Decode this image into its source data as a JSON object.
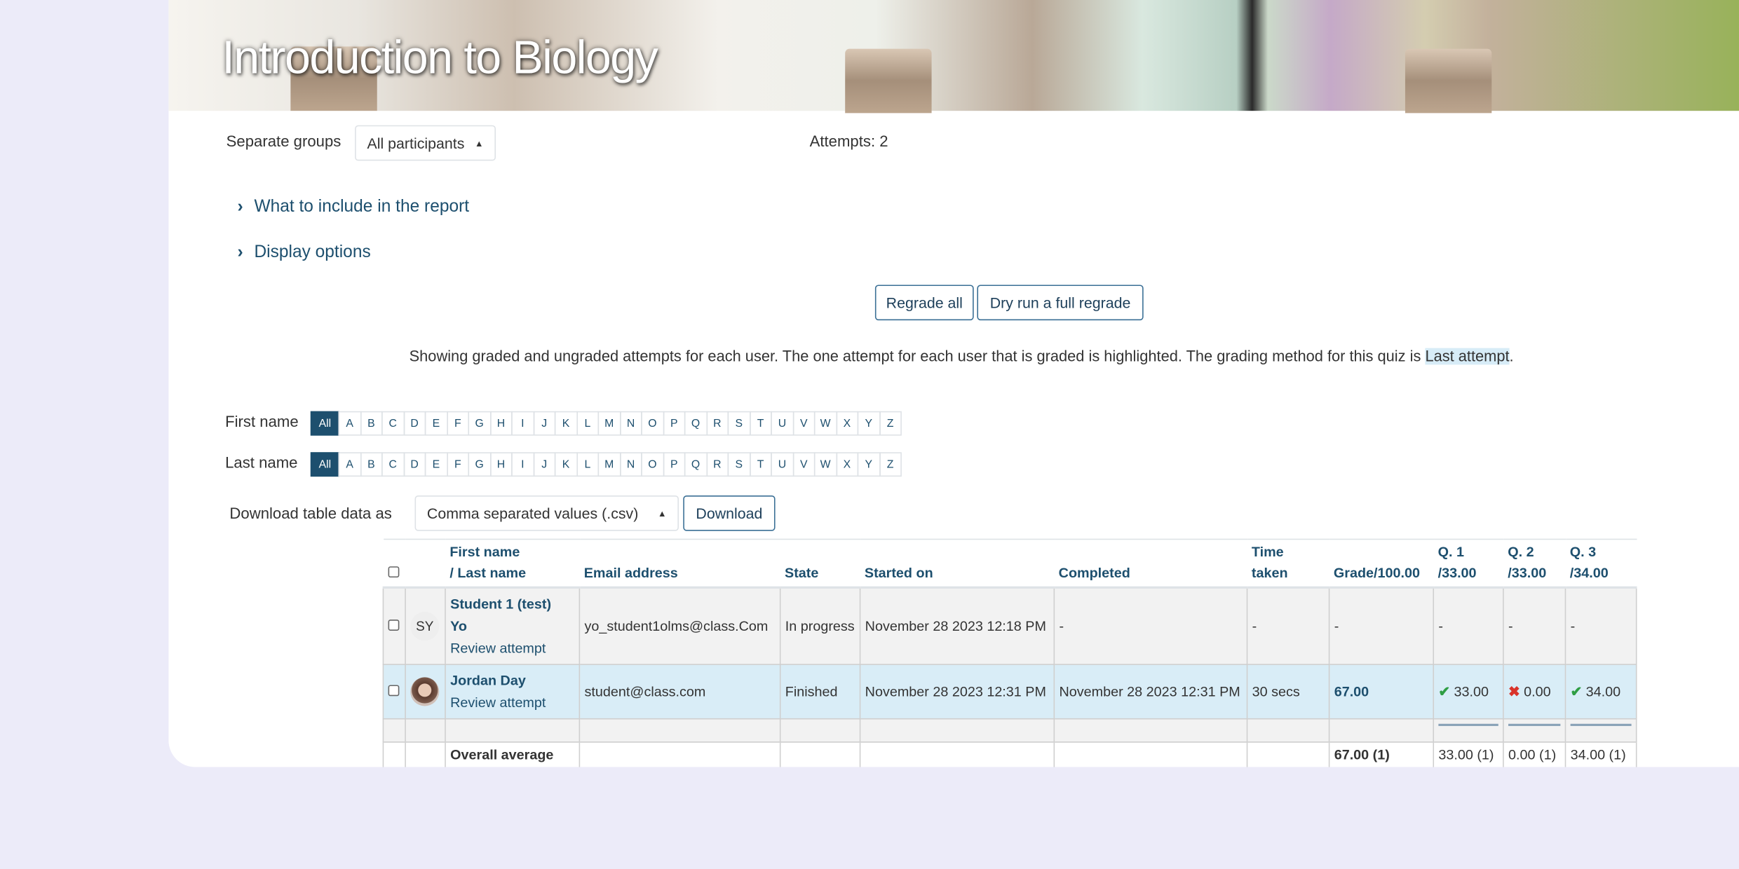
{
  "header": {
    "course_title": "Introduction to Biology"
  },
  "groups": {
    "label": "Separate groups",
    "selected": "All participants"
  },
  "attempts_text": "Attempts: 2",
  "sections": [
    {
      "label": "What to include in the report",
      "icon": "chevron-right-icon"
    },
    {
      "label": "Display options",
      "icon": "chevron-right-icon"
    }
  ],
  "buttons": {
    "regrade_all": "Regrade all",
    "dry_run": "Dry run a full regrade",
    "download": "Download"
  },
  "info": {
    "text": "Showing graded and ungraded attempts for each user. The one attempt for each user that is graded is highlighted. The grading method for this quiz is ",
    "method": "Last attempt",
    "end": "."
  },
  "initials": {
    "first_label": "First name",
    "last_label": "Last name",
    "all": "All",
    "letters": [
      "A",
      "B",
      "C",
      "D",
      "E",
      "F",
      "G",
      "H",
      "I",
      "J",
      "K",
      "L",
      "M",
      "N",
      "O",
      "P",
      "Q",
      "R",
      "S",
      "T",
      "U",
      "V",
      "W",
      "X",
      "Y",
      "Z"
    ]
  },
  "download": {
    "label": "Download table data as",
    "format": "Comma separated values (.csv)"
  },
  "table": {
    "headers": {
      "name1": "First name",
      "name2": "/ Last name",
      "email": "Email address",
      "state": "State",
      "started": "Started on",
      "completed": "Completed",
      "time1": "Time",
      "time2": "taken",
      "grade": "Grade/100.00",
      "q1a": "Q. 1",
      "q1b": "/33.00",
      "q2a": "Q. 2",
      "q2b": "/33.00",
      "q3a": "Q. 3",
      "q3b": "/34.00"
    },
    "rows": [
      {
        "initials": "SY",
        "name1": "Student 1 (test)",
        "name2": "Yo",
        "review": "Review attempt",
        "email": "yo_student1olms@class.Com",
        "state": "In progress",
        "started": "November 28 2023 12:18 PM",
        "completed": "-",
        "time": "-",
        "grade": "-",
        "q1": "-",
        "q2": "-",
        "q3": "-"
      },
      {
        "name1": "Jordan Day",
        "review": "Review attempt",
        "email": "student@class.com",
        "state": "Finished",
        "started": "November 28 2023 12:31 PM",
        "completed": "November 28 2023 12:31 PM",
        "time": "30 secs",
        "grade": "67.00",
        "q1": "33.00",
        "q1_status": "correct",
        "q2": "0.00",
        "q2_status": "incorrect",
        "q3": "34.00",
        "q3_status": "correct"
      }
    ],
    "average": {
      "label": "Overall average",
      "grade": "67.00 (1)",
      "q1": "33.00 (1)",
      "q2": "0.00 (1)",
      "q3": "34.00 (1)"
    }
  },
  "colors": {
    "accent": "#1d4f6e",
    "highlight_row": "#d9edf7",
    "background": "#ecebf9"
  }
}
